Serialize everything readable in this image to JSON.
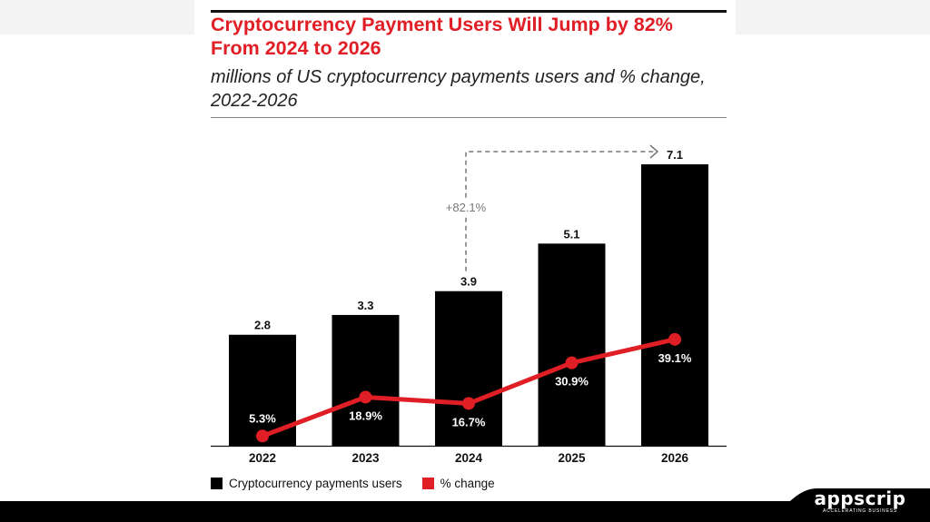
{
  "title": "Cryptocurrency Payment Users Will Jump by 82% From 2024 to 2026",
  "subtitle": "millions of US cryptocurrency payments users and % change, 2022-2026",
  "colors": {
    "bars": "#000000",
    "line": "#e01e25",
    "title": "#e01e25",
    "annotation": "#777777"
  },
  "chart_data": {
    "type": "bar",
    "categories": [
      "2022",
      "2023",
      "2024",
      "2025",
      "2026"
    ],
    "series": [
      {
        "name": "Cryptocurrency payments users",
        "type": "bar",
        "values": [
          2.8,
          3.3,
          3.9,
          5.1,
          7.1
        ],
        "labels": [
          "2.8",
          "3.3",
          "3.9",
          "5.1",
          "7.1"
        ]
      },
      {
        "name": "% change",
        "type": "line",
        "values": [
          5.3,
          18.9,
          16.7,
          30.9,
          39.1
        ],
        "labels": [
          "5.3%",
          "18.9%",
          "16.7%",
          "30.9%",
          "39.1%"
        ]
      }
    ],
    "annotation": {
      "text": "+82.1%",
      "from": "2024",
      "to": "2026"
    },
    "legend": {
      "position": "bottom-left"
    },
    "grid": false
  },
  "legend": {
    "bars_label": "Cryptocurrency payments users",
    "line_label": "% change"
  },
  "branding": {
    "logo": "appscrip",
    "tagline": "ACCELERATING BUSINESS"
  }
}
